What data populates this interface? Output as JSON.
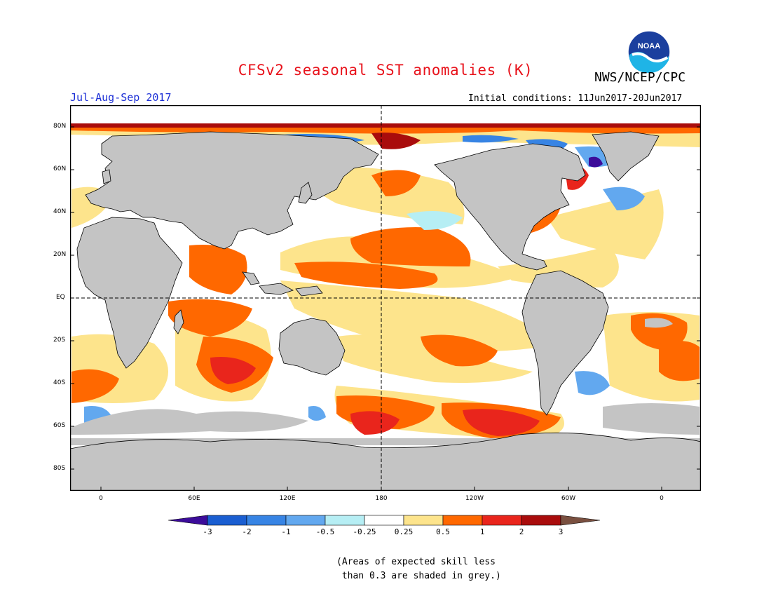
{
  "title": "CFSv2 seasonal SST anomalies (K)",
  "organization": "NWS/NCEP/CPC",
  "logo_text": "NOAA",
  "period": "Jul-Aug-Sep 2017",
  "initial_conditions": "Initial conditions: 11Jun2017-20Jun2017",
  "lat_labels": [
    "80N",
    "60N",
    "40N",
    "20N",
    "EQ",
    "20S",
    "40S",
    "60S",
    "80S"
  ],
  "lon_labels": [
    "0",
    "60E",
    "120E",
    "180",
    "120W",
    "60W",
    "0"
  ],
  "colorbar": {
    "tick_labels": [
      "-3",
      "-2",
      "-1",
      "-0.5",
      "-0.25",
      "0.25",
      "0.5",
      "1",
      "2",
      "3"
    ],
    "colors": [
      "#3c0c9a",
      "#1a5ed1",
      "#3784e4",
      "#62a8ef",
      "#b6eef4",
      "#ffffff",
      "#fde48c",
      "#ff6800",
      "#e9251c",
      "#a90c0c",
      "#7a5040"
    ]
  },
  "note_lines": [
    "(Areas of expected skill less",
    " than 0.3 are shaded in grey.)"
  ],
  "map_colors": {
    "land": "#c4c4c4",
    "low_skill": "#c4c4c4"
  }
}
